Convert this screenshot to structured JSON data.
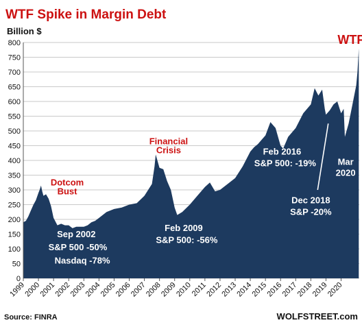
{
  "chart_data": {
    "type": "area",
    "title": "WTF Spike in Margin Debt",
    "ylabel": "Billion $",
    "source": "Source: FINRA",
    "watermark": "WOLFSTREET.com",
    "ylim": [
      0,
      800
    ],
    "yticks": [
      0,
      50,
      100,
      150,
      200,
      250,
      300,
      350,
      400,
      450,
      500,
      550,
      600,
      650,
      700,
      750,
      800
    ],
    "xlim": [
      1999.0,
      2021.2
    ],
    "xticks": [
      "1999",
      "2000",
      "2001",
      "2002",
      "2003",
      "2004",
      "2005",
      "2006",
      "2007",
      "2008",
      "2009",
      "2010",
      "2011",
      "2012",
      "2013",
      "2014",
      "2015",
      "2016",
      "2017",
      "2018",
      "2019",
      "2020"
    ],
    "grid": true,
    "colors": {
      "area": "#1d3a5f",
      "title": "#cc1111",
      "callout_red": "#cc1111",
      "callout_white": "#ffffff",
      "axis_text": "#111111",
      "grid": "#c9c9c9"
    },
    "series": [
      {
        "x": [
          1999.0,
          1999.17,
          1999.33,
          1999.5,
          1999.67,
          1999.83,
          2000.0,
          2000.08,
          2000.17,
          2000.25,
          2000.33,
          2000.5,
          2000.67,
          2000.83,
          2001.0,
          2001.25,
          2001.5,
          2001.75,
          2002.0,
          2002.25,
          2002.5,
          2002.75,
          2003.0,
          2003.25,
          2003.5,
          2003.75,
          2004.0,
          2004.5,
          2005.0,
          2005.5,
          2006.0,
          2006.5,
          2007.0,
          2007.25,
          2007.5,
          2007.67,
          2007.75,
          2008.0,
          2008.25,
          2008.5,
          2008.75,
          2009.0,
          2009.17,
          2009.5,
          2010.0,
          2010.5,
          2011.0,
          2011.33,
          2011.67,
          2012.0,
          2012.5,
          2013.0,
          2013.5,
          2014.0,
          2014.25,
          2014.5,
          2014.75,
          2015.0,
          2015.33,
          2015.67,
          2016.0,
          2016.17,
          2016.5,
          2017.0,
          2017.5,
          2018.0,
          2018.25,
          2018.5,
          2018.75,
          2018.92,
          2019.0,
          2019.25,
          2019.5,
          2019.75,
          2020.0,
          2020.17,
          2020.25,
          2020.5,
          2020.75,
          2021.0,
          2021.08,
          2021.17
        ],
        "values": [
          190,
          195,
          210,
          230,
          250,
          265,
          290,
          300,
          315,
          295,
          280,
          285,
          270,
          245,
          205,
          180,
          185,
          180,
          180,
          170,
          175,
          175,
          175,
          180,
          190,
          195,
          205,
          225,
          235,
          240,
          250,
          255,
          280,
          300,
          320,
          380,
          420,
          375,
          370,
          330,
          300,
          240,
          215,
          225,
          250,
          280,
          310,
          325,
          295,
          300,
          320,
          340,
          380,
          430,
          445,
          455,
          470,
          485,
          530,
          510,
          450,
          440,
          480,
          510,
          560,
          590,
          645,
          620,
          640,
          575,
          555,
          570,
          590,
          600,
          560,
          575,
          480,
          525,
          590,
          655,
          700,
          780
        ]
      }
    ],
    "annotations": [
      {
        "text": "WTF",
        "x": 2020.65,
        "y": 795,
        "color": "red"
      },
      {
        "text": "Financial",
        "x": 2008.6,
        "y": 455,
        "color": "red"
      },
      {
        "text": "Crisis",
        "x": 2008.6,
        "y": 425,
        "color": "red"
      },
      {
        "text": "Dotcom",
        "x": 2001.9,
        "y": 315,
        "color": "red"
      },
      {
        "text": "Bust",
        "x": 2001.9,
        "y": 285,
        "color": "red"
      },
      {
        "text": "Sep 2002",
        "x": 2002.5,
        "y": 140,
        "color": "white"
      },
      {
        "text": "S&P 500 -50%",
        "x": 2002.6,
        "y": 95,
        "color": "white"
      },
      {
        "text": "Nasdaq -78%",
        "x": 2002.9,
        "y": 50,
        "color": "white"
      },
      {
        "text": "Feb 2009",
        "x": 2009.6,
        "y": 160,
        "color": "white"
      },
      {
        "text": "S&P 500: -56%",
        "x": 2009.8,
        "y": 120,
        "color": "white"
      },
      {
        "text": "Feb 2016",
        "x": 2016.1,
        "y": 420,
        "color": "white"
      },
      {
        "text": "S&P 500: -19%",
        "x": 2016.3,
        "y": 380,
        "color": "white"
      },
      {
        "text": "Dec 2018",
        "x": 2018.0,
        "y": 255,
        "color": "white"
      },
      {
        "text": "S&P -20%",
        "x": 2018.0,
        "y": 215,
        "color": "white"
      },
      {
        "text": "Mar",
        "x": 2020.3,
        "y": 385,
        "color": "white"
      },
      {
        "text": "2020",
        "x": 2020.3,
        "y": 348,
        "color": "white"
      }
    ],
    "arrows": [
      {
        "from": [
          2018.45,
          300
        ],
        "to": [
          2019.15,
          525
        ]
      }
    ]
  }
}
